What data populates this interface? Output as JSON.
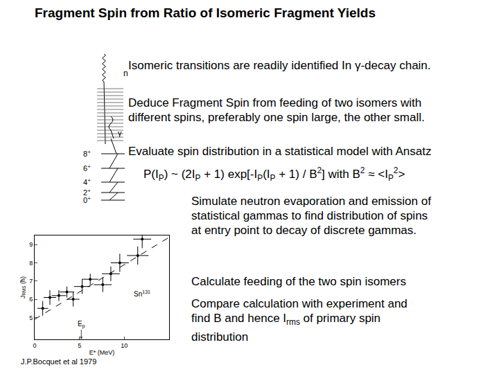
{
  "title": "Fragment Spin from Ratio of Isomeric Fragment Yields",
  "level_scheme": {
    "neutron": "n",
    "gamma": "γ",
    "levels": [
      [
        "8",
        {
          "sup": "+"
        }
      ],
      [
        "6",
        {
          "sup": "+"
        }
      ],
      [
        "4",
        {
          "sup": "+"
        }
      ],
      [
        "2",
        {
          "sup": "+"
        }
      ],
      [
        "0",
        {
          "sup": "+"
        }
      ]
    ]
  },
  "top_text": [
    [
      [
        "Isomeric transitions are readily identified In γ-decay chain."
      ]
    ],
    [
      [
        "Deduce Fragment Spin  from feeding of two isomers with"
      ],
      [
        "different spins, preferably one spin  large, the other small."
      ]
    ],
    [
      [
        "Evaluate spin distribution in a statistical model with Ansatz"
      ]
    ]
  ],
  "formula": [
    "P(I",
    {
      "sub": "P"
    },
    ") ~ (2I",
    {
      "sub": "P"
    },
    " + 1) exp[-I",
    {
      "sub": "P"
    },
    "(I",
    {
      "sub": "P"
    },
    " + 1) / B",
    {
      "sup": "2"
    },
    "] with B",
    {
      "sup": "2"
    },
    " ≈ <I",
    {
      "sub": "P"
    },
    {
      "sup": "2"
    },
    ">"
  ],
  "right_text": [
    [
      [
        "Simulate neutron evaporation and emission of"
      ],
      [
        "statistical gammas to find distribution of spins"
      ],
      [
        "at entry point to decay of discrete gammas."
      ]
    ],
    [
      [
        "Calculate feeding of the two spin isomers"
      ]
    ],
    [
      [
        "Compare calculation with experiment and"
      ],
      [
        "find B and hence I",
        {
          "sub": "rms"
        },
        " of primary spin"
      ],
      [
        "distribution"
      ]
    ]
  ],
  "chart_data": {
    "type": "scatter",
    "x_label": [
      "E* (MeV)"
    ],
    "y_label": [
      "J",
      {
        "sub": "RMS"
      },
      " (ħ)"
    ],
    "xlim": [
      0,
      15
    ],
    "ylim": [
      3.8,
      9.5
    ],
    "xticks": [
      0,
      5,
      10
    ],
    "yticks": [
      5,
      6,
      7,
      8,
      9
    ],
    "grid": false,
    "series": [
      {
        "type": "scatter",
        "marker": "circle",
        "color": "#000000",
        "x": [
          0.9,
          1.7,
          2.7,
          3.6,
          4.3,
          5.3,
          6.2,
          7.6,
          8.5,
          9.5,
          11.5,
          12.0
        ],
        "values": [
          5.5,
          6.1,
          6.2,
          6.4,
          6.0,
          6.7,
          7.1,
          6.8,
          7.4,
          8.0,
          8.4,
          9.3
        ],
        "x_error": [
          0.6,
          0.7,
          0.8,
          0.8,
          0.7,
          0.9,
          0.9,
          1.0,
          1.0,
          1.0,
          1.2,
          1.0
        ],
        "y_error": [
          0.4,
          0.4,
          0.3,
          0.3,
          0.4,
          0.4,
          0.3,
          0.4,
          0.4,
          0.5,
          0.5,
          0.5
        ]
      },
      {
        "type": "line",
        "line_style": "dashed",
        "color": "#000000",
        "x": [
          0,
          15
        ],
        "values": [
          4.9,
          9.4
        ]
      }
    ],
    "annotations": [
      {
        "text": [
          "Sn",
          {
            "sup": "131"
          }
        ],
        "x": 12.0,
        "y": 6.3,
        "arrow": false
      },
      {
        "text": [
          "E",
          {
            "sub": "p"
          }
        ],
        "x": 5.2,
        "y": 3.8,
        "arrow": true
      }
    ]
  },
  "citation": "J.P.Bocquet et al 1979"
}
